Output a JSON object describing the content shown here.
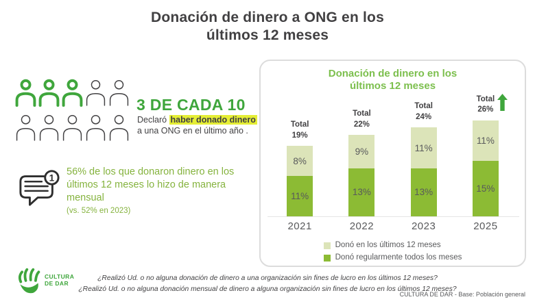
{
  "header": {
    "title_line1": "Donación de dinero a ONG en los",
    "title_line2": "últimos 12 meses"
  },
  "left": {
    "pictogram": {
      "total": 10,
      "highlighted": 3,
      "icon": "person-icon"
    },
    "big_stat": "3 DE CADA 10",
    "declaration_prefix": "Declaró ",
    "declaration_highlight": "haber donado dinero",
    "declaration_suffix": "a una ONG en el último año .",
    "note": {
      "badge": "1",
      "text": "56% de los que donaron dinero en los últimos 12 meses lo hizo de manera mensual",
      "subtext": "(vs. 52% en 2023)"
    }
  },
  "chart_data": {
    "type": "bar",
    "stacked": true,
    "title": "Donación de dinero en los últimos 12 meses",
    "title_lines": [
      "Donación de dinero en los",
      "últimos 12 meses"
    ],
    "categories": [
      "2021",
      "2022",
      "2023",
      "2025"
    ],
    "series": [
      {
        "name": "Donó en los últimos 12 meses",
        "color": "#DCE4B9",
        "position": "top",
        "values": [
          8,
          9,
          11,
          11
        ]
      },
      {
        "name": "Donó regularmente todos los meses",
        "color": "#8CBB34",
        "position": "bottom",
        "values": [
          11,
          13,
          13,
          15
        ]
      }
    ],
    "totals": {
      "label": "Total",
      "values": [
        "19%",
        "22%",
        "24%",
        "26%"
      ],
      "arrow_up_on": "2025"
    },
    "legend_position": "bottom",
    "ylim": [
      0,
      28
    ],
    "grid": false
  },
  "footer": {
    "question1": "¿Realizó Ud. o no alguna donación de dinero a una organización sin fines de lucro en los últimos 12 meses?",
    "question2": "¿Realizó Ud. o no alguna donación mensual de dinero a alguna organización sin fines de lucro en los últimos 12 meses?",
    "source": "CULTURA DE DAR - Base: Población general",
    "logo": {
      "line1": "CULTURA",
      "line2": "DE DAR",
      "icon": "hand-icon"
    }
  },
  "colors": {
    "accent_green": "#3FA63C",
    "text_green": "#85B33E",
    "chart_title_green": "#7CBF4D",
    "bar_dark": "#8CBB34",
    "bar_light": "#DCE4B9",
    "highlight_yellow": "#E5EE35",
    "text_dark": "#414042",
    "text_gray": "#58595B"
  }
}
